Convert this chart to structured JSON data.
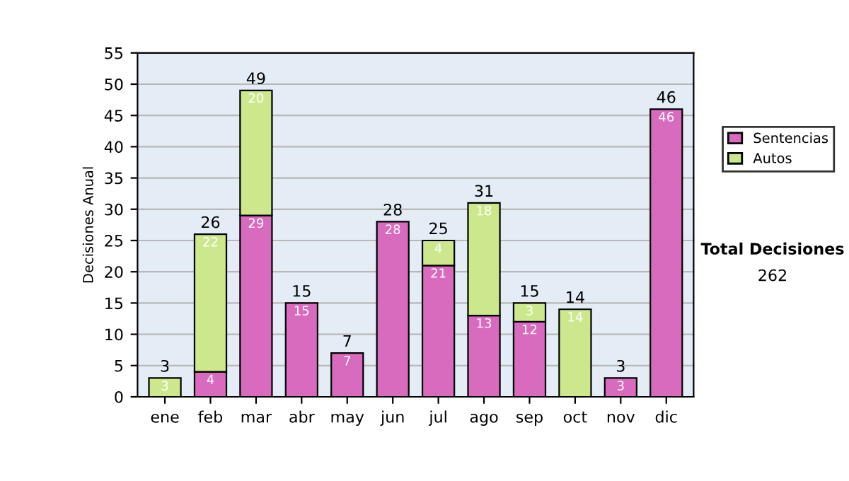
{
  "chart_data": {
    "type": "bar",
    "stacked": true,
    "ylabel": "Decisiones Anual",
    "categories": [
      "ene",
      "feb",
      "mar",
      "abr",
      "may",
      "jun",
      "jul",
      "ago",
      "sep",
      "oct",
      "nov",
      "dic"
    ],
    "series": [
      {
        "name": "Sentencias",
        "color": "#d96bbf",
        "values": [
          0,
          4,
          29,
          15,
          7,
          28,
          21,
          13,
          12,
          0,
          3,
          46
        ],
        "value_labels": [
          null,
          "4",
          "29",
          "15",
          "7",
          "28",
          "21",
          "13",
          "12",
          null,
          "3",
          "46"
        ]
      },
      {
        "name": "Autos",
        "color": "#cde88c",
        "values": [
          3,
          22,
          20,
          0,
          0,
          0,
          4,
          18,
          3,
          14,
          0,
          0
        ],
        "value_labels": [
          "3",
          "22",
          "20",
          null,
          null,
          null,
          "4",
          "18",
          "3",
          "14",
          null,
          null
        ]
      }
    ],
    "totals": [
      "3",
      "26",
      "49",
      "15",
      "7",
      "28",
      "25",
      "31",
      "15",
      "14",
      "3",
      "46"
    ],
    "ylim": [
      0,
      55
    ],
    "yticks": [
      0,
      5,
      10,
      15,
      20,
      25,
      30,
      35,
      40,
      45,
      50,
      55
    ],
    "grid": "y",
    "legend": "right",
    "annotations": [
      "Total Decisiones",
      "262"
    ]
  }
}
